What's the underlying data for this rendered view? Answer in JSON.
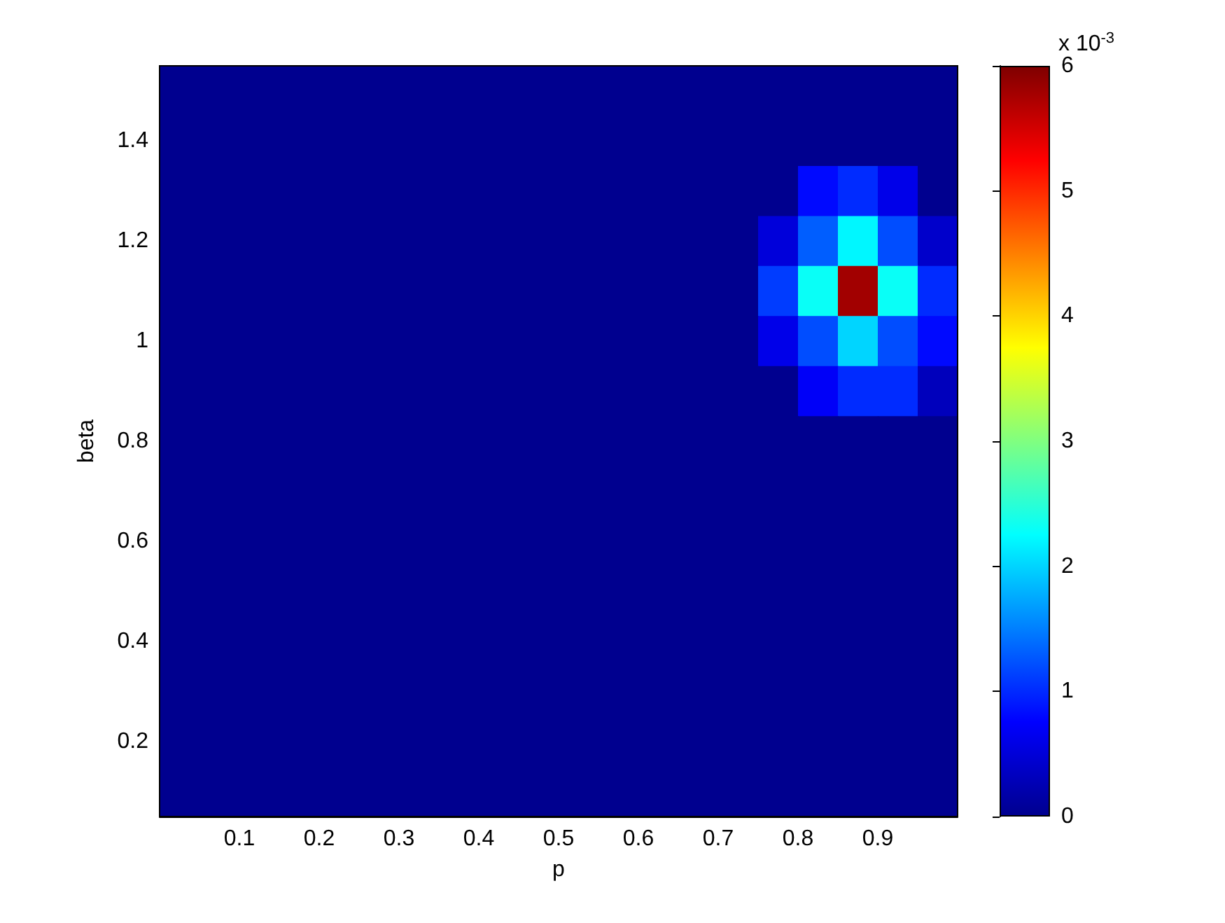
{
  "chart_data": {
    "type": "heatmap",
    "xlabel": "p",
    "ylabel": "beta",
    "clabel": "x 10$^{-3}$",
    "x": [
      0.025,
      0.075,
      0.125,
      0.175,
      0.225,
      0.275,
      0.325,
      0.375,
      0.425,
      0.475,
      0.525,
      0.575,
      0.625,
      0.675,
      0.725,
      0.775,
      0.825,
      0.875,
      0.925,
      0.975
    ],
    "y": [
      1.5,
      1.4,
      1.3,
      1.2,
      1.1,
      1,
      0.9,
      0.8,
      0.7,
      0.6,
      0.5,
      0.4,
      0.3,
      0.2,
      0.1
    ],
    "xlim": [
      0,
      1
    ],
    "ylim": [
      0.05,
      1.55
    ],
    "xticks": [
      0.1,
      0.2,
      0.3,
      0.4,
      0.5,
      0.6,
      0.7,
      0.8,
      0.9
    ],
    "yticks": [
      0.2,
      0.4,
      0.6,
      0.8,
      1,
      1.2,
      1.4
    ],
    "clim": [
      0,
      6
    ],
    "cticks": [
      0,
      1,
      2,
      3,
      4,
      5,
      6
    ],
    "cells": [
      [
        0,
        0,
        0,
        0,
        0,
        0,
        0,
        0,
        0,
        0,
        0,
        0,
        0,
        0,
        0,
        0,
        0,
        0,
        0,
        0
      ],
      [
        0,
        0,
        0,
        0,
        0,
        0,
        0,
        0,
        0,
        0,
        0,
        0,
        0,
        0,
        0,
        0,
        0,
        0,
        0,
        0
      ],
      [
        0,
        0,
        0,
        0,
        0,
        0,
        0,
        0,
        0,
        0,
        0,
        0,
        0,
        0,
        0,
        0,
        0.8,
        1,
        0.6,
        0
      ],
      [
        0,
        0,
        0,
        0,
        0,
        0,
        0,
        0,
        0,
        0,
        0,
        0,
        0,
        0,
        0,
        0.5,
        1.3,
        2.2,
        1.2,
        0.4
      ],
      [
        0,
        0,
        0,
        0,
        0,
        0,
        0,
        0,
        0,
        0,
        0,
        0,
        0,
        0,
        0,
        1.1,
        2.3,
        5.8,
        2.3,
        1
      ],
      [
        0,
        0,
        0,
        0,
        0,
        0,
        0,
        0,
        0,
        0,
        0,
        0,
        0,
        0,
        0,
        0.6,
        1.2,
        2,
        1.2,
        0.8
      ],
      [
        0,
        0,
        0,
        0,
        0,
        0,
        0,
        0,
        0,
        0,
        0,
        0,
        0,
        0,
        0,
        0,
        0.7,
        1,
        1,
        0.3
      ],
      [
        0,
        0,
        0,
        0,
        0,
        0,
        0,
        0,
        0,
        0,
        0,
        0,
        0,
        0,
        0,
        0,
        0,
        0,
        0,
        0
      ],
      [
        0,
        0,
        0,
        0,
        0,
        0,
        0,
        0,
        0,
        0,
        0,
        0,
        0,
        0,
        0,
        0,
        0,
        0,
        0,
        0
      ],
      [
        0,
        0,
        0,
        0,
        0,
        0,
        0,
        0,
        0,
        0,
        0,
        0,
        0,
        0,
        0,
        0,
        0,
        0,
        0,
        0
      ],
      [
        0,
        0,
        0,
        0,
        0,
        0,
        0,
        0,
        0,
        0,
        0,
        0,
        0,
        0,
        0,
        0,
        0,
        0,
        0,
        0
      ],
      [
        0,
        0,
        0,
        0,
        0,
        0,
        0,
        0,
        0,
        0,
        0,
        0,
        0,
        0,
        0,
        0,
        0,
        0,
        0,
        0
      ],
      [
        0,
        0,
        0,
        0,
        0,
        0,
        0,
        0,
        0,
        0,
        0,
        0,
        0,
        0,
        0,
        0,
        0,
        0,
        0,
        0
      ],
      [
        0,
        0,
        0,
        0,
        0,
        0,
        0,
        0,
        0,
        0,
        0,
        0,
        0,
        0,
        0,
        0,
        0,
        0,
        0,
        0
      ],
      [
        0,
        0,
        0,
        0,
        0,
        0,
        0,
        0,
        0,
        0,
        0,
        0,
        0,
        0,
        0,
        0,
        0,
        0,
        0,
        0
      ]
    ]
  }
}
